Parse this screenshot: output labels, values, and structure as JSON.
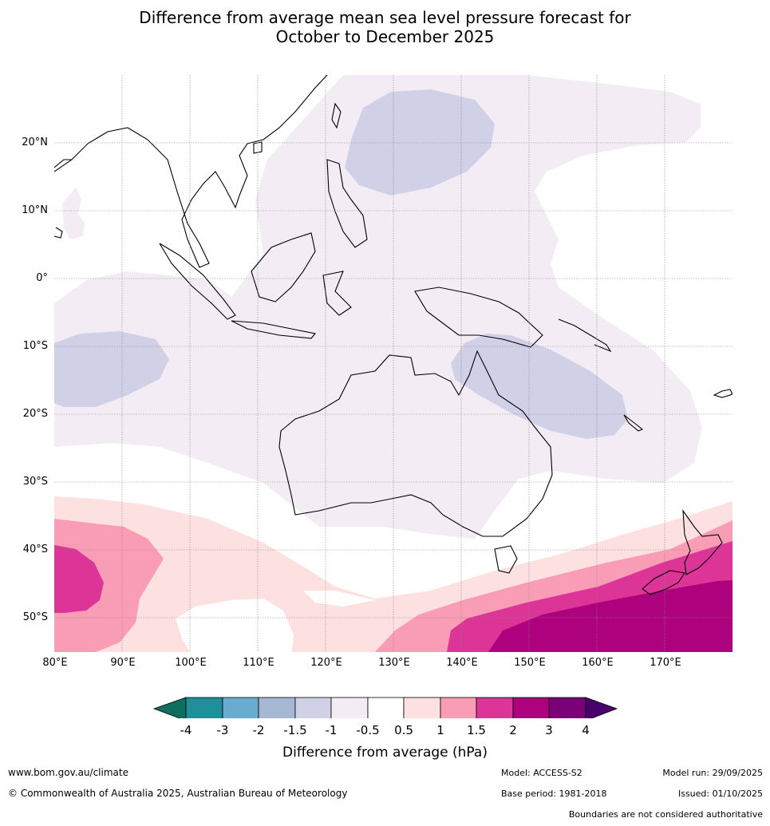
{
  "title": {
    "line1": "Difference from average mean sea level pressure forecast for",
    "line2": "October to December 2025"
  },
  "map": {
    "lat_labels": [
      "20°N",
      "10°N",
      "0°",
      "10°S",
      "20°S",
      "30°S",
      "40°S",
      "50°S"
    ],
    "lon_labels": [
      "80°E",
      "90°E",
      "100°E",
      "110°E",
      "120°E",
      "130°E",
      "140°E",
      "150°E",
      "160°E",
      "170°E"
    ],
    "extent": {
      "lon": [
        80,
        180
      ],
      "lat": [
        -55,
        30
      ]
    }
  },
  "colorbar": {
    "tick_labels": [
      "-4",
      "-3",
      "-2",
      "-1.5",
      "-1",
      "-0.5",
      "0.5",
      "1",
      "1.5",
      "2",
      "3",
      "4"
    ],
    "colors": [
      "#0e6f61",
      "#1f8f99",
      "#6aabd0",
      "#a6b7d4",
      "#d0d1e6",
      "#f3ecf5",
      "#ffffff",
      "#fde0e0",
      "#f99cb6",
      "#dd3497",
      "#ae017e",
      "#7a0177",
      "#49006a"
    ],
    "title": "Difference from average (hPa)"
  },
  "footer": {
    "website": "www.bom.gov.au/climate",
    "copyright": "© Commonwealth of Australia 2025, Australian Bureau of Meteorology",
    "model": "Model: ACCESS-S2",
    "base_period": "Base period: 1981-2018",
    "model_run": "Model run: 29/09/2025",
    "issued": "Issued: 01/10/2025",
    "disclaimer": "Boundaries are not considered authoritative"
  }
}
